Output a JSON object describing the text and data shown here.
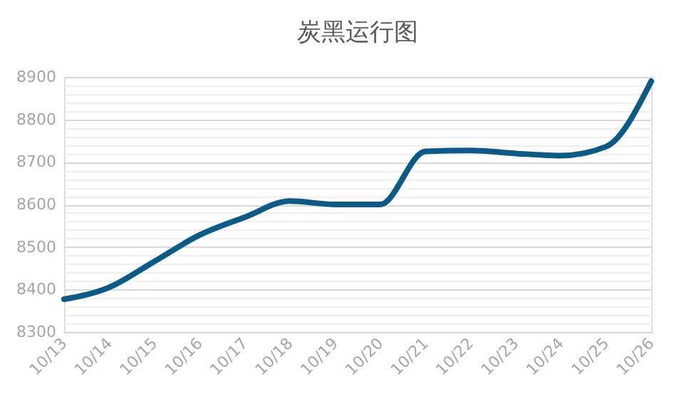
{
  "chart_data": {
    "type": "line",
    "title": "炭黑运行图",
    "categories": [
      "10/13",
      "10/14",
      "10/15",
      "10/16",
      "10/17",
      "10/18",
      "10/19",
      "10/20",
      "10/21",
      "10/22",
      "10/23",
      "10/24",
      "10/25",
      "10/26"
    ],
    "series": [
      {
        "color": "#0e5a87",
        "values": [
          8377,
          8405,
          8466,
          8528,
          8570,
          8608,
          8600,
          8600,
          8725,
          8727,
          8720,
          8715,
          8736,
          8890
        ]
      }
    ],
    "ylim": [
      8300,
      8900
    ],
    "yticks": [
      8300,
      {
        "value": 8320,
        "label": null
      },
      {
        "value": 8340,
        "label": null
      },
      {
        "value": 8360,
        "label": null
      },
      {
        "value": 8380,
        "label": null
      },
      8400,
      {
        "value": 8420,
        "label": null
      },
      {
        "value": 8440,
        "label": null
      },
      {
        "value": 8460,
        "label": null
      },
      {
        "value": 8480,
        "label": null
      },
      8500,
      {
        "value": 8520,
        "label": null
      },
      {
        "value": 8540,
        "label": null
      },
      {
        "value": 8560,
        "label": null
      },
      {
        "value": 8580,
        "label": null
      },
      8600,
      {
        "value": 8620,
        "label": null
      },
      {
        "value": 8640,
        "label": null
      },
      {
        "value": 8660,
        "label": null
      },
      {
        "value": 8680,
        "label": null
      },
      8700,
      {
        "value": 8720,
        "label": null
      },
      {
        "value": 8740,
        "label": null
      },
      {
        "value": 8760,
        "label": null
      },
      {
        "value": 8780,
        "label": null
      },
      8800,
      {
        "value": 8820,
        "label": null
      },
      {
        "value": 8840,
        "label": null
      },
      {
        "value": 8860,
        "label": null
      },
      {
        "value": 8880,
        "label": null
      },
      8900
    ],
    "grid": "y",
    "legend": false,
    "marker": "none",
    "line_style": "solid"
  }
}
